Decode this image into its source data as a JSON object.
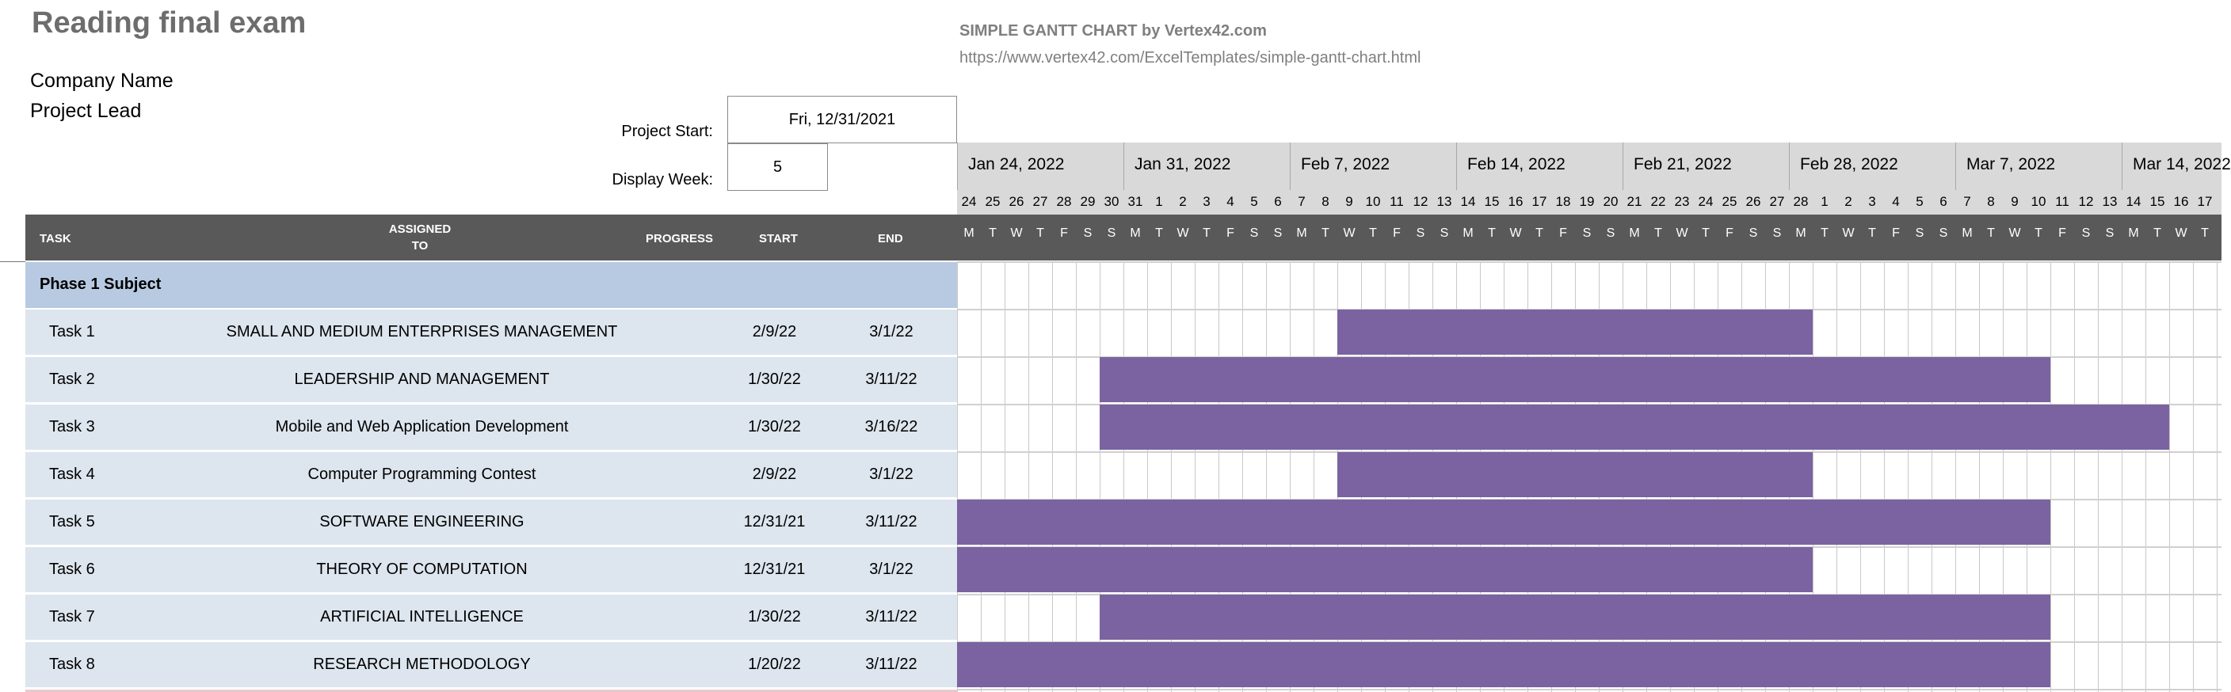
{
  "sheet": {
    "title": "Reading final exam",
    "company_label": "Company Name",
    "lead_label": "Project Lead",
    "credit": "SIMPLE GANTT CHART by Vertex42.com",
    "url": "https://www.vertex42.com/ExcelTemplates/simple-gantt-chart.html",
    "project_start_label": "Project Start:",
    "project_start_value": "Fri, 12/31/2021",
    "display_week_label": "Display Week:",
    "display_week_value": "5"
  },
  "columns": {
    "task": "TASK",
    "assigned_line1": "ASSIGNED",
    "assigned_line2": "TO",
    "progress": "PROGRESS",
    "start": "START",
    "end": "END"
  },
  "timeline": {
    "weeks": [
      "Jan 24, 2022",
      "Jan 31, 2022",
      "Feb 7, 2022",
      "Feb 14, 2022",
      "Feb 21, 2022",
      "Feb 28, 2022",
      "Mar 7, 2022",
      "Mar 14, 2022"
    ],
    "day_numbers": [
      "24",
      "25",
      "26",
      "27",
      "28",
      "29",
      "30",
      "31",
      "1",
      "2",
      "3",
      "4",
      "5",
      "6",
      "7",
      "8",
      "9",
      "10",
      "11",
      "12",
      "13",
      "14",
      "15",
      "16",
      "17",
      "18",
      "19",
      "20",
      "21",
      "22",
      "23",
      "24",
      "25",
      "26",
      "27",
      "28",
      "1",
      "2",
      "3",
      "4",
      "5",
      "6",
      "7",
      "8",
      "9",
      "10",
      "11",
      "12",
      "13",
      "14",
      "15",
      "16",
      "17"
    ],
    "day_letters": [
      "M",
      "T",
      "W",
      "T",
      "F",
      "S",
      "S",
      "M",
      "T",
      "W",
      "T",
      "F",
      "S",
      "S",
      "M",
      "T",
      "W",
      "T",
      "F",
      "S",
      "S",
      "M",
      "T",
      "W",
      "T",
      "F",
      "S",
      "S",
      "M",
      "T",
      "W",
      "T",
      "F",
      "S",
      "S",
      "M",
      "T",
      "W",
      "T",
      "F",
      "S",
      "S",
      "M",
      "T",
      "W",
      "T",
      "F",
      "S",
      "S",
      "M",
      "T",
      "W",
      "T"
    ]
  },
  "phase": {
    "label": "Phase 1 Subject"
  },
  "tasks": [
    {
      "name": "Task 1",
      "assigned": "SMALL AND MEDIUM ENTERPRISES MANAGEMENT",
      "start": "2/9/22",
      "end": "3/1/22",
      "bar_start_day": 16,
      "bar_end_day": 36
    },
    {
      "name": "Task 2",
      "assigned": "LEADERSHIP AND MANAGEMENT",
      "start": "1/30/22",
      "end": "3/11/22",
      "bar_start_day": 6,
      "bar_end_day": 46
    },
    {
      "name": "Task 3",
      "assigned": "Mobile and Web Application Development",
      "start": "1/30/22",
      "end": "3/16/22",
      "bar_start_day": 6,
      "bar_end_day": 51
    },
    {
      "name": "Task 4",
      "assigned": "Computer Programming Contest",
      "start": "2/9/22",
      "end": "3/1/22",
      "bar_start_day": 16,
      "bar_end_day": 36
    },
    {
      "name": "Task 5",
      "assigned": "SOFTWARE ENGINEERING",
      "start": "12/31/21",
      "end": "3/11/22",
      "bar_start_day": 0,
      "bar_end_day": 46
    },
    {
      "name": "Task 6",
      "assigned": "THEORY OF COMPUTATION",
      "start": "12/31/21",
      "end": "3/1/22",
      "bar_start_day": 0,
      "bar_end_day": 36
    },
    {
      "name": "Task 7",
      "assigned": "ARTIFICIAL INTELLIGENCE",
      "start": "1/30/22",
      "end": "3/11/22",
      "bar_start_day": 6,
      "bar_end_day": 46
    },
    {
      "name": "Task 8",
      "assigned": "RESEARCH METHODOLOGY",
      "start": "1/20/22",
      "end": "3/11/22",
      "bar_start_day": 0,
      "bar_end_day": 46
    }
  ],
  "colors": {
    "bar": "#7a63a0",
    "header": "#595959",
    "phase": "#b8cae2",
    "row": "#dde5ee"
  }
}
